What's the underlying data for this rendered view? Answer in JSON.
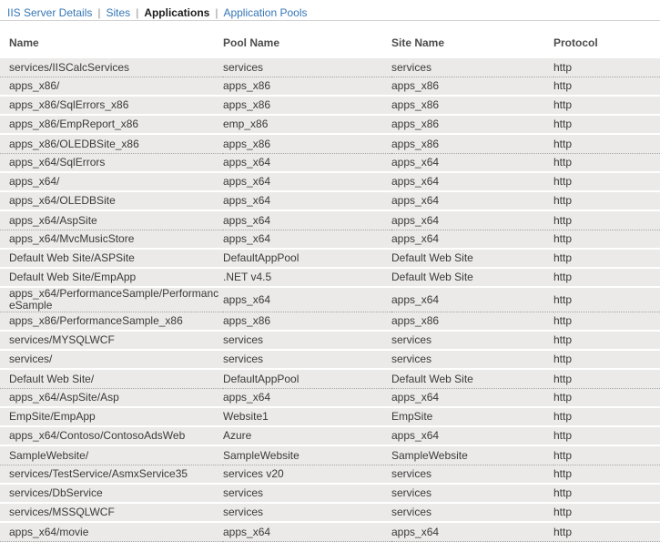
{
  "nav": {
    "separator": "|",
    "links": [
      {
        "label": "IIS Server Details",
        "active": false
      },
      {
        "label": "Sites",
        "active": false
      },
      {
        "label": "Applications",
        "active": true
      },
      {
        "label": "Application Pools",
        "active": false
      }
    ]
  },
  "colors": {
    "link_blue": "#3576b5",
    "row_background": "#ebeae8",
    "divider_dotted": "#a6a6a6"
  },
  "table": {
    "columns": [
      "Name",
      "Pool Name",
      "Site Name",
      "Protocol"
    ],
    "rows": [
      {
        "name": "services/IISCalcServices",
        "pool_name": "services",
        "site_name": "services",
        "protocol": "http"
      },
      {
        "name": "apps_x86/",
        "pool_name": "apps_x86",
        "site_name": "apps_x86",
        "protocol": "http"
      },
      {
        "name": "apps_x86/SqlErrors_x86",
        "pool_name": "apps_x86",
        "site_name": "apps_x86",
        "protocol": "http"
      },
      {
        "name": "apps_x86/EmpReport_x86",
        "pool_name": "emp_x86",
        "site_name": "apps_x86",
        "protocol": "http"
      },
      {
        "name": "apps_x86/OLEDBSite_x86",
        "pool_name": "apps_x86",
        "site_name": "apps_x86",
        "protocol": "http"
      },
      {
        "name": "apps_x64/SqlErrors",
        "pool_name": "apps_x64",
        "site_name": "apps_x64",
        "protocol": "http"
      },
      {
        "name": "apps_x64/",
        "pool_name": "apps_x64",
        "site_name": "apps_x64",
        "protocol": "http"
      },
      {
        "name": "apps_x64/OLEDBSite",
        "pool_name": "apps_x64",
        "site_name": "apps_x64",
        "protocol": "http"
      },
      {
        "name": "apps_x64/AspSite",
        "pool_name": "apps_x64",
        "site_name": "apps_x64",
        "protocol": "http"
      },
      {
        "name": "apps_x64/MvcMusicStore",
        "pool_name": "apps_x64",
        "site_name": "apps_x64",
        "protocol": "http"
      },
      {
        "name": "Default Web Site/ASPSite",
        "pool_name": "DefaultAppPool",
        "site_name": "Default Web Site",
        "protocol": "http"
      },
      {
        "name": "Default Web Site/EmpApp",
        "pool_name": ".NET v4.5",
        "site_name": "Default Web Site",
        "protocol": "http"
      },
      {
        "name": "apps_x64/PerformanceSample/PerformanceSample",
        "pool_name": "apps_x64",
        "site_name": "apps_x64",
        "protocol": "http"
      },
      {
        "name": "apps_x86/PerformanceSample_x86",
        "pool_name": "apps_x86",
        "site_name": "apps_x86",
        "protocol": "http"
      },
      {
        "name": "services/MYSQLWCF",
        "pool_name": "services",
        "site_name": "services",
        "protocol": "http"
      },
      {
        "name": "services/",
        "pool_name": "services",
        "site_name": "services",
        "protocol": "http"
      },
      {
        "name": "Default Web Site/",
        "pool_name": "DefaultAppPool",
        "site_name": "Default Web Site",
        "protocol": "http"
      },
      {
        "name": "apps_x64/AspSite/Asp",
        "pool_name": "apps_x64",
        "site_name": "apps_x64",
        "protocol": "http"
      },
      {
        "name": "EmpSite/EmpApp",
        "pool_name": "Website1",
        "site_name": "EmpSite",
        "protocol": "http"
      },
      {
        "name": "apps_x64/Contoso/ContosoAdsWeb",
        "pool_name": "Azure",
        "site_name": "apps_x64",
        "protocol": "http"
      },
      {
        "name": "SampleWebsite/",
        "pool_name": "SampleWebsite",
        "site_name": "SampleWebsite",
        "protocol": "http"
      },
      {
        "name": "services/TestService/AsmxService35",
        "pool_name": "services v20",
        "site_name": "services",
        "protocol": "http"
      },
      {
        "name": "services/DbService",
        "pool_name": "services",
        "site_name": "services",
        "protocol": "http"
      },
      {
        "name": "services/MSSQLWCF",
        "pool_name": "services",
        "site_name": "services",
        "protocol": "http"
      },
      {
        "name": "apps_x64/movie",
        "pool_name": "apps_x64",
        "site_name": "apps_x64",
        "protocol": "http"
      }
    ]
  }
}
